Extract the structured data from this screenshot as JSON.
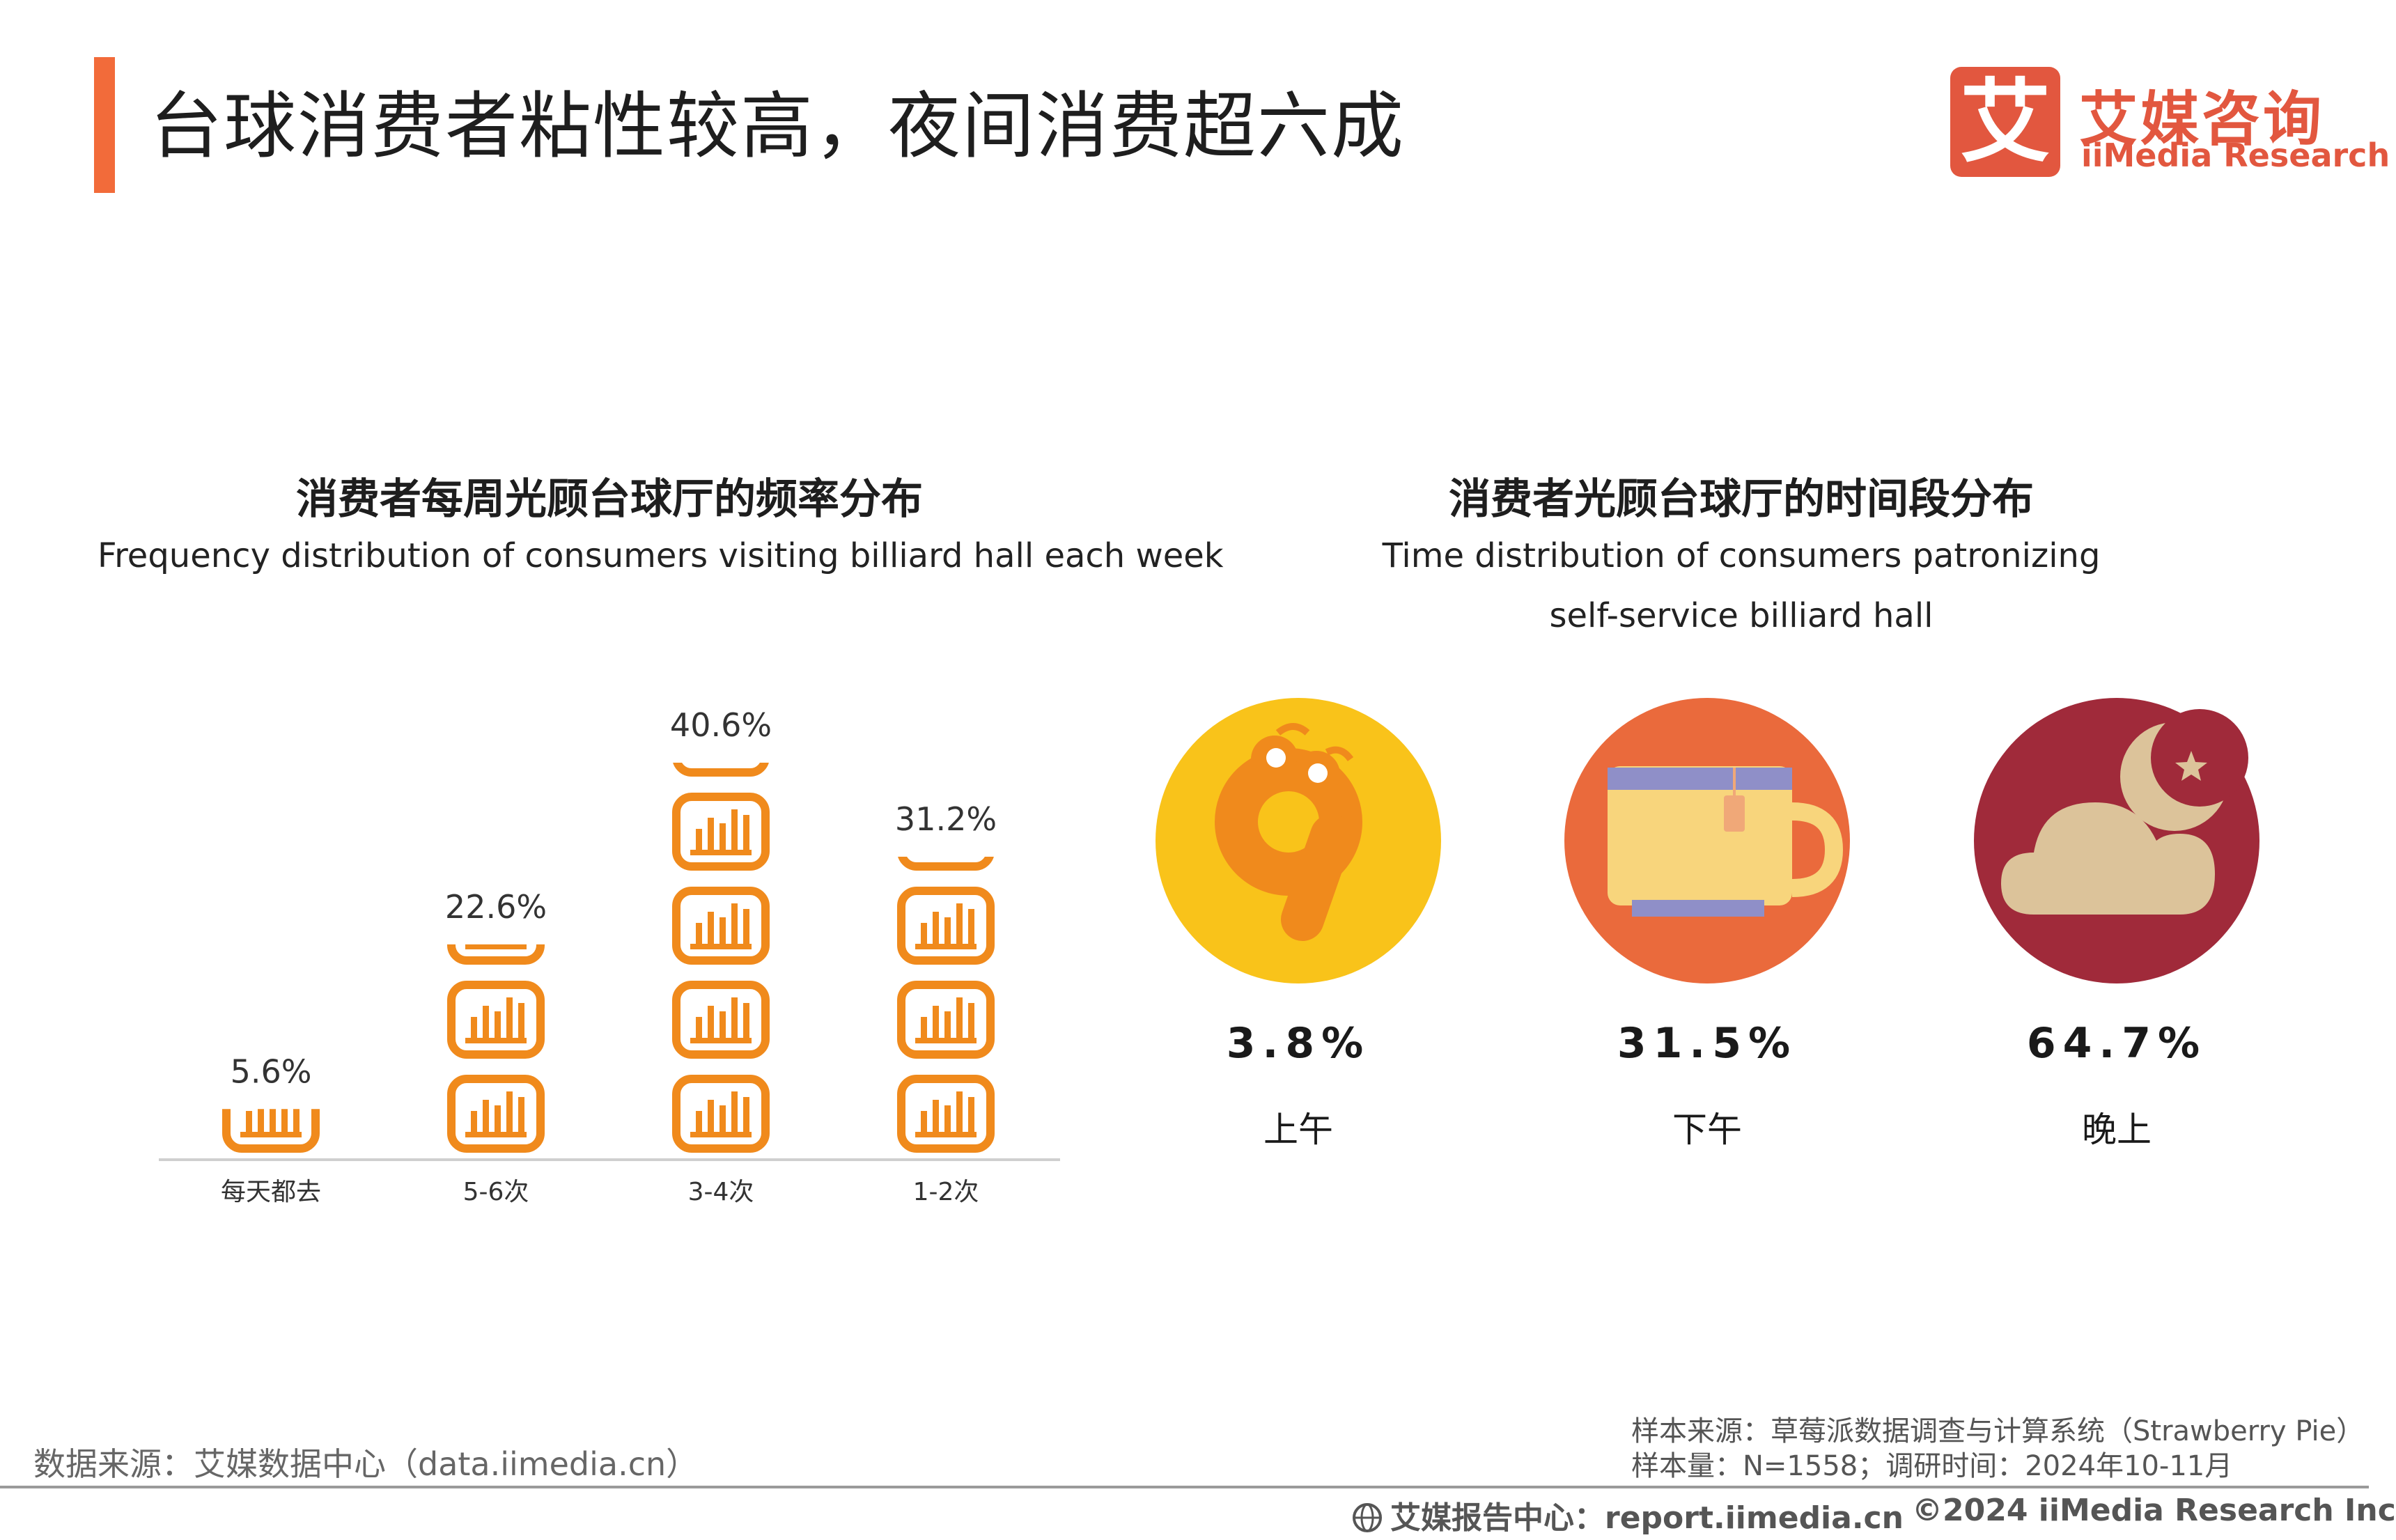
{
  "header": {
    "title": "台球消费者粘性较高，夜间消费超六成",
    "logo_cn": "艾媒咨询",
    "logo_en": "iiMedia Research",
    "logo_mark": "艾"
  },
  "colors": {
    "accent": "#f26b3a",
    "bar_icon": "#f08a1c",
    "morning_bg": "#f9c31a",
    "afternoon_bg": "#ea6a3c",
    "evening_bg": "#a02a3a"
  },
  "left_chart": {
    "title": "消费者每周光顾台球厅的频率分布",
    "subtitle": "Frequency distribution of consumers visiting billiard hall each week"
  },
  "right_chart": {
    "title": "消费者光顾台球厅的时间段分布",
    "subtitle_line1": "Time distribution of consumers patronizing",
    "subtitle_line2": "self-service billiard hall",
    "items": [
      {
        "value": "3.8%",
        "label": "上午",
        "icon": "morning-nine-icon"
      },
      {
        "value": "31.5%",
        "label": "下午",
        "icon": "teacup-icon"
      },
      {
        "value": "64.7%",
        "label": "晚上",
        "icon": "moon-cloud-icon"
      }
    ]
  },
  "chart_data": [
    {
      "type": "bar",
      "title": "消费者每周光顾台球厅的频率分布",
      "subtitle": "Frequency distribution of consumers visiting billiard hall each week",
      "categories": [
        "每天都去",
        "5-6次",
        "3-4次",
        "1-2次"
      ],
      "values": [
        5.6,
        22.6,
        40.6,
        31.2
      ],
      "value_labels": [
        "5.6%",
        "22.6%",
        "40.6%",
        "31.2%"
      ],
      "unit": "%",
      "style": "pictograph"
    },
    {
      "type": "table",
      "title": "消费者光顾台球厅的时间段分布",
      "categories": [
        "上午",
        "下午",
        "晚上"
      ],
      "values": [
        3.8,
        31.5,
        64.7
      ],
      "unit": "%"
    }
  ],
  "footer": {
    "source_left": "数据来源：艾媒数据中心（data.iimedia.cn）",
    "sample_source": "样本来源：草莓派数据调查与计算系统（Strawberry Pie）",
    "sample_size": "样本量：N=1558；调研时间：2024年10-11月",
    "site": "艾媒报告中心：report.iimedia.cn",
    "copyright": "©2024  iiMedia Research  Inc"
  }
}
